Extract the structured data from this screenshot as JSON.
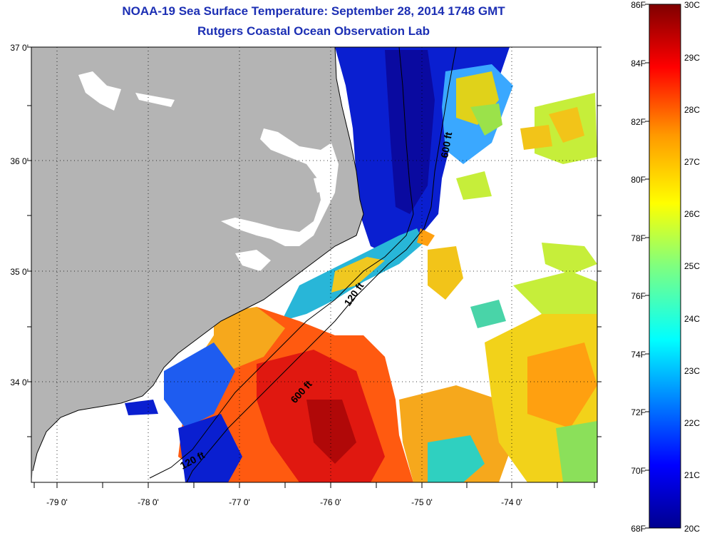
{
  "header": {
    "title": "NOAA-19 Sea Surface Temperature:  September 28, 2014 1748 GMT",
    "subtitle": "Rutgers Coastal Ocean Observation Lab"
  },
  "map": {
    "lat_ticks": [
      "37 0'",
      "36 0'",
      "35 0'",
      "34 0'"
    ],
    "lon_ticks": [
      "-79 0'",
      "-78 0'",
      "-77 0'",
      "-76 0'",
      "-75 0'",
      "-74 0'"
    ],
    "contours": {
      "c600_north": "600 ft",
      "c120_mid": "120 ft",
      "c600_south": "600 ft",
      "c120_south": "120 ft"
    },
    "colors": {
      "land": "#b4b4b4",
      "no_data": "#ffffff"
    }
  },
  "colorbar": {
    "fahrenheit": [
      "86F",
      "84F",
      "82F",
      "80F",
      "78F",
      "76F",
      "74F",
      "72F",
      "70F",
      "68F"
    ],
    "celsius": [
      "30C",
      "29C",
      "28C",
      "27C",
      "26C",
      "25C",
      "24C",
      "23C",
      "22C",
      "21C",
      "20C"
    ],
    "colormap": [
      "#00008f",
      "#0000ff",
      "#007fff",
      "#00ffff",
      "#7fff7f",
      "#ffff00",
      "#ff7f00",
      "#ff0000",
      "#7f0000"
    ]
  }
}
